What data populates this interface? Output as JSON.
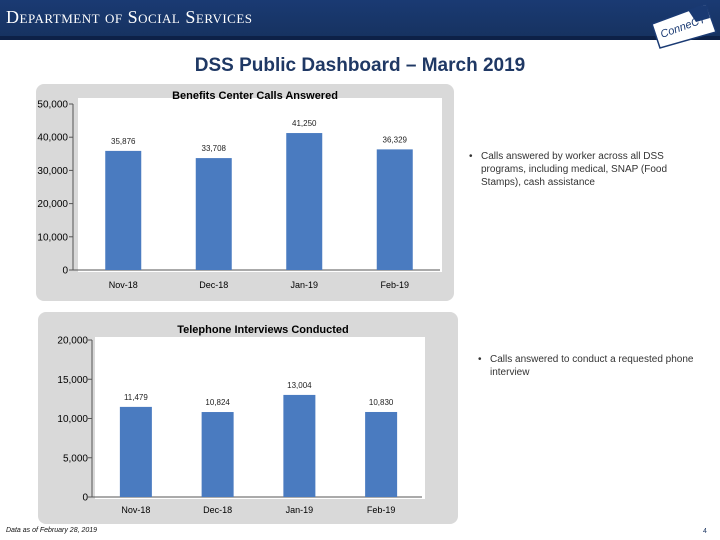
{
  "header": {
    "department": "Department of Social Services",
    "logo_text": "ConneCT"
  },
  "page_title": "DSS Public Dashboard – March 2019",
  "notes": [
    {
      "bullet": "•",
      "text": "Calls answered by worker across all DSS programs, including medical, SNAP (Food Stamps), cash assistance"
    },
    {
      "bullet": "•",
      "text": "Calls answered to conduct a requested phone interview"
    }
  ],
  "footer": {
    "date": "Data as of February 28, 2019",
    "page": "4"
  },
  "colors": {
    "bar": "#4a7bc0",
    "header": "#1a3a73",
    "title": "#1f3864",
    "panel": "#d9d9d9"
  },
  "chart_data": [
    {
      "type": "bar",
      "title": "Benefits Center Calls Answered",
      "categories": [
        "Nov-18",
        "Dec-18",
        "Jan-19",
        "Feb-19"
      ],
      "values": [
        35876,
        33708,
        41250,
        36329
      ],
      "value_labels": [
        "35,876",
        "33,708",
        "41,250",
        "36,329"
      ],
      "yticks": [
        0,
        10000,
        20000,
        30000,
        40000,
        50000
      ],
      "ytick_labels": [
        "0",
        "10,000",
        "20,000",
        "30,000",
        "40,000",
        "50,000"
      ],
      "ylim": [
        0,
        50000
      ]
    },
    {
      "type": "bar",
      "title": "Telephone Interviews Conducted",
      "categories": [
        "Nov-18",
        "Dec-18",
        "Jan-19",
        "Feb-19"
      ],
      "values": [
        11479,
        10824,
        13004,
        10830
      ],
      "value_labels": [
        "11,479",
        "10,824",
        "13,004",
        "10,830"
      ],
      "yticks": [
        0,
        5000,
        10000,
        15000,
        20000
      ],
      "ytick_labels": [
        "0",
        "5,000",
        "10,000",
        "15,000",
        "20,000"
      ],
      "ylim": [
        0,
        20000
      ]
    }
  ]
}
